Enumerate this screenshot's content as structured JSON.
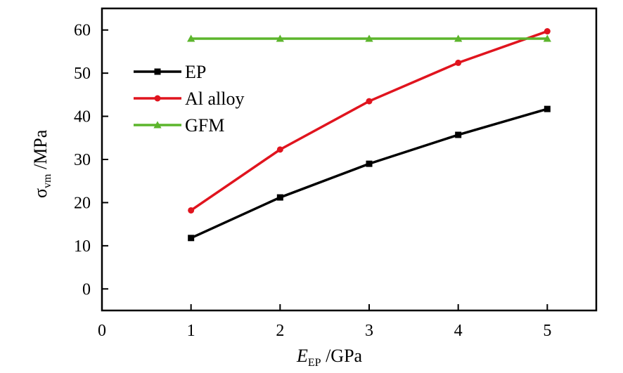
{
  "chart_data": {
    "type": "line",
    "xlabel": {
      "main": "E",
      "sub": "EP",
      "rest": " /GPa"
    },
    "ylabel": {
      "main": "σ",
      "sub": "vm",
      "rest": " /MPa"
    },
    "xlim": [
      0,
      5.55
    ],
    "ylim": [
      -5,
      65
    ],
    "x_ticks": [
      0,
      1,
      2,
      3,
      4,
      5
    ],
    "y_ticks": [
      0,
      10,
      20,
      30,
      40,
      50,
      60
    ],
    "grid": false,
    "legend_position": "top-left",
    "x": [
      1,
      2,
      3,
      4,
      5
    ],
    "series": [
      {
        "name": "EP",
        "values": [
          11.8,
          21.2,
          29.0,
          35.7,
          41.7
        ],
        "color": "#000000",
        "marker": "square"
      },
      {
        "name": "Al alloy",
        "values": [
          18.2,
          32.3,
          43.5,
          52.4,
          59.7
        ],
        "color": "#e0141e",
        "marker": "circle"
      },
      {
        "name": "GFM",
        "values": [
          58.0,
          58.0,
          58.0,
          58.0,
          58.0
        ],
        "color": "#5cb52c",
        "marker": "triangle"
      }
    ]
  }
}
